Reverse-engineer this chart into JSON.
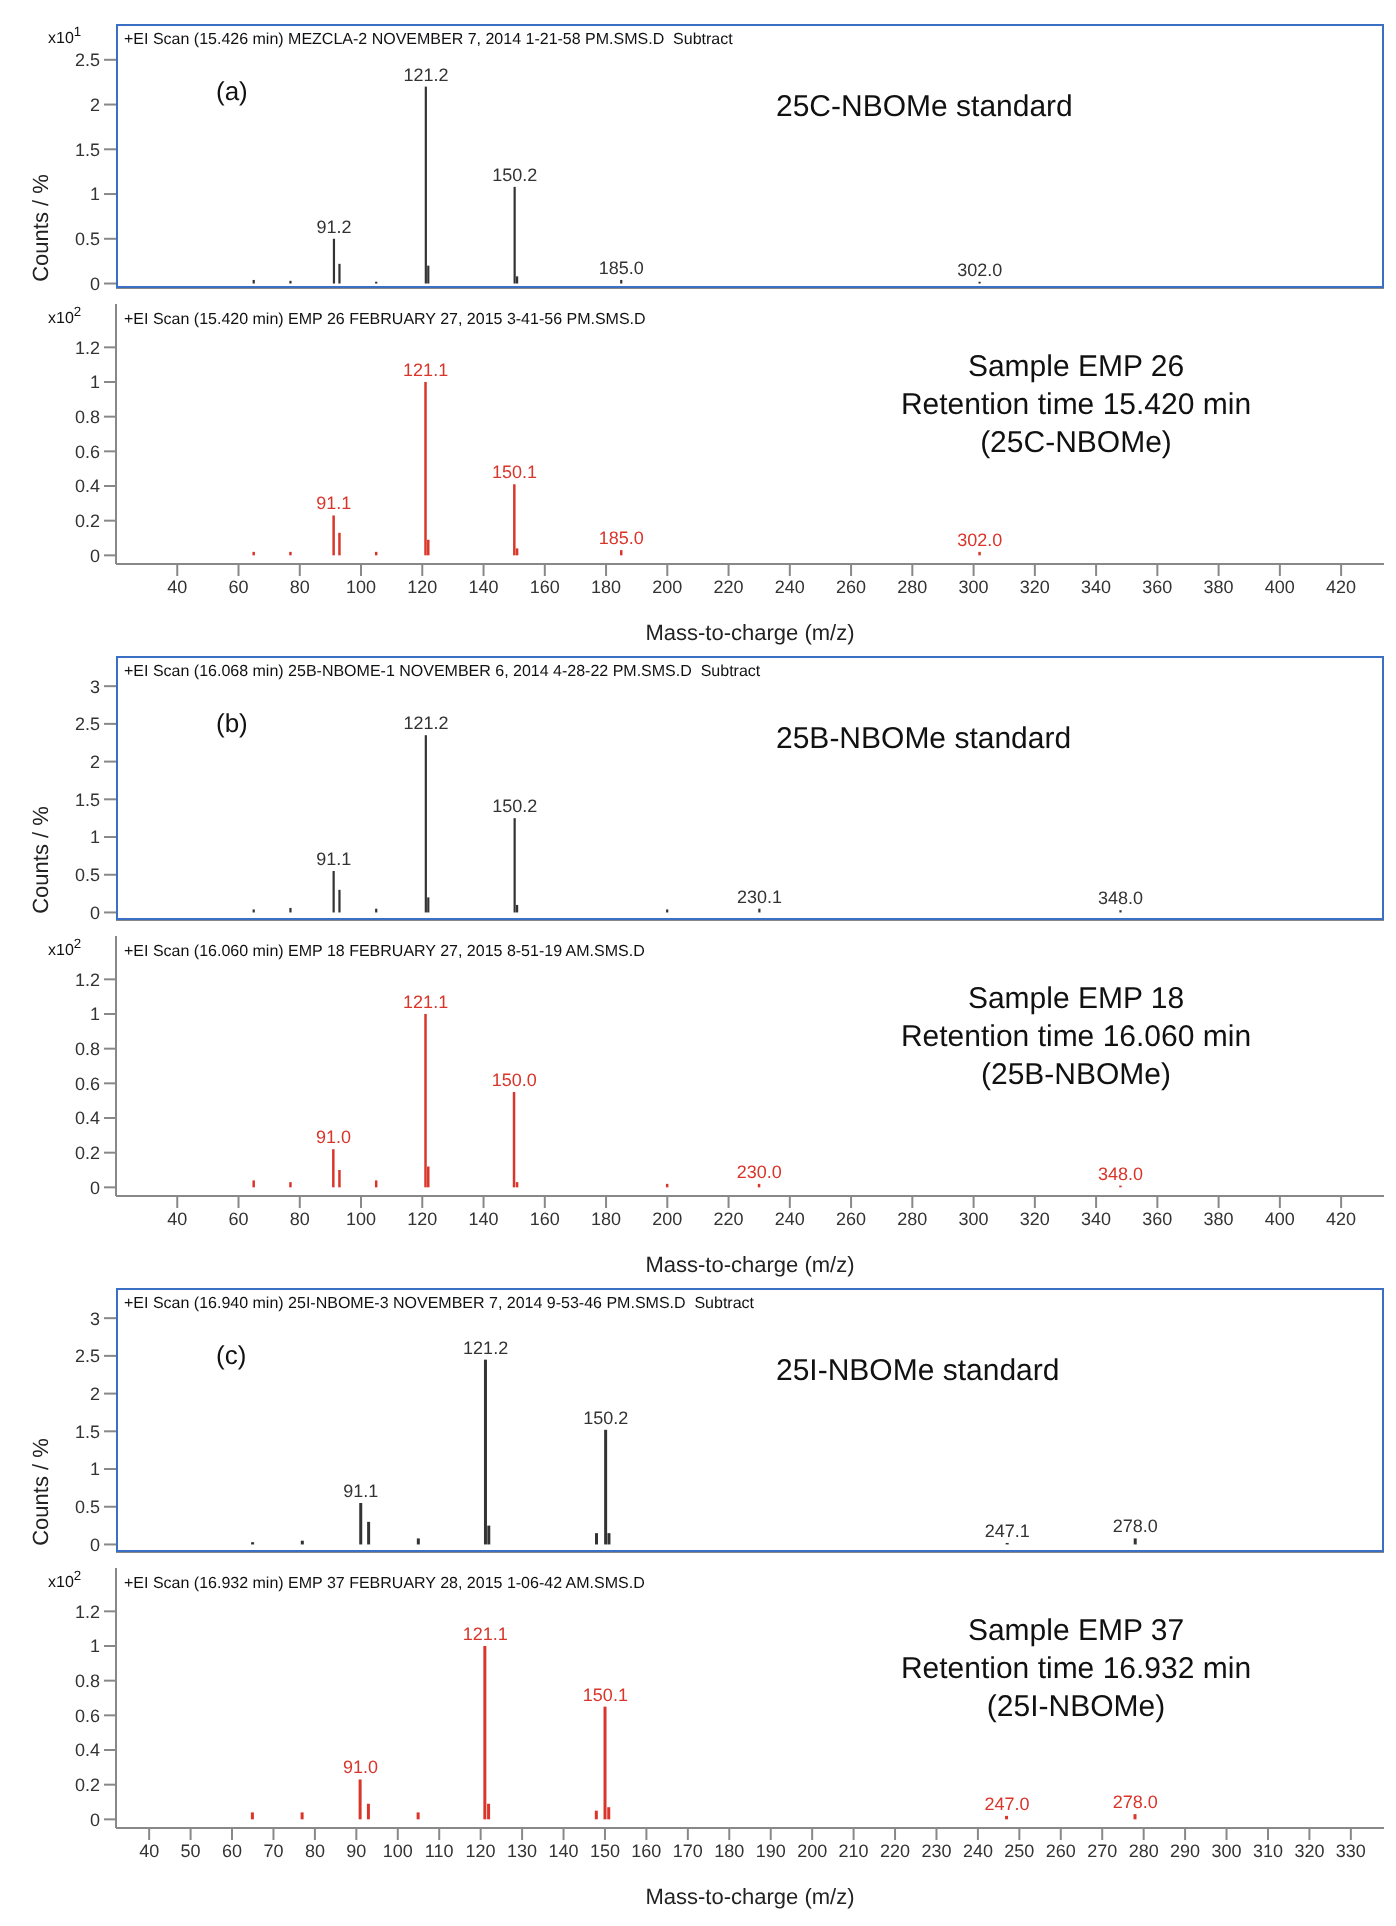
{
  "chart_data": [
    {
      "type": "bar",
      "title": "25C-NBOMe standard",
      "subtitle": "+EI Scan (15.426 min) MEZCLA-2 NOVEMBER 7, 2014 1-21-58 PM.SMS.D  Subtract",
      "ylabel": "Counts / %",
      "tick_labels": "y",
      "xlim": [
        20,
        434
      ],
      "ylim": [
        -0.05,
        2.9
      ],
      "yticks": [
        0,
        0.5,
        1,
        1.5,
        2,
        2.5
      ],
      "x": [
        65,
        77,
        91.2,
        93,
        105,
        121.2,
        122,
        150.2,
        151,
        185,
        302
      ],
      "series": [
        {
          "color": "#333333",
          "values": [
            0.04,
            0.03,
            0.5,
            0.22,
            0.02,
            2.2,
            0.2,
            1.08,
            0.08,
            0.04,
            0.02
          ]
        }
      ],
      "annotations": [
        "x10$^{1}$",
        "(a)",
        {
          "text": "91.2",
          "x": 91.2,
          "y": 0.5
        },
        {
          "text": "121.2",
          "x": 121.2,
          "y": 2.2
        },
        {
          "text": "150.2",
          "x": 150.2,
          "y": 1.08
        },
        {
          "text": "185.0",
          "x": 185,
          "y": 0.04
        },
        {
          "text": "302.0",
          "x": 302,
          "y": 0.02
        }
      ]
    },
    {
      "type": "bar",
      "title": "Sample EMP 26\nRetention time 15.420 min\n(25C-NBOMe)",
      "subtitle": "+EI Scan (15.420 min) EMP 26 FEBRUARY 27, 2015 3-41-56 PM.SMS.D",
      "xlabel": "Mass-to-charge (m/z)",
      "xlim": [
        20,
        434
      ],
      "xticks": [
        40,
        60,
        80,
        100,
        120,
        140,
        160,
        180,
        200,
        220,
        240,
        260,
        280,
        300,
        320,
        340,
        360,
        380,
        400,
        420
      ],
      "ylim": [
        -0.05,
        1.45
      ],
      "yticks": [
        0,
        0.2,
        0.4,
        0.6,
        0.8,
        1,
        1.2
      ],
      "x": [
        65,
        77,
        91.1,
        93,
        105,
        121.1,
        122,
        150.1,
        151,
        185,
        302
      ],
      "series": [
        {
          "color": "#d9352b",
          "values": [
            0.02,
            0.02,
            0.23,
            0.13,
            0.02,
            1,
            0.09,
            0.41,
            0.04,
            0.03,
            0.02
          ]
        }
      ],
      "annotations": [
        "x10$^{2}$",
        {
          "text": "91.1",
          "x": 91.1,
          "y": 0.23
        },
        {
          "text": "121.1",
          "x": 121.1,
          "y": 1
        },
        {
          "text": "150.1",
          "x": 150.1,
          "y": 0.41
        },
        {
          "text": "185.0",
          "x": 185,
          "y": 0.03
        },
        {
          "text": "302.0",
          "x": 302,
          "y": 0.02
        }
      ]
    },
    {
      "type": "bar",
      "title": "25B-NBOMe standard",
      "subtitle": "+EI Scan (16.068 min) 25B-NBOME-1 NOVEMBER 6, 2014 4-28-22 PM.SMS.D  Subtract",
      "ylabel": "Counts / %",
      "tick_labels": "y",
      "xlim": [
        20,
        434
      ],
      "ylim": [
        -0.1,
        3.4
      ],
      "yticks": [
        0,
        0.5,
        1,
        1.5,
        2,
        2.5,
        3
      ],
      "x": [
        65,
        77,
        91.1,
        93,
        105,
        121.2,
        122,
        150.2,
        151,
        200,
        230.1,
        348
      ],
      "series": [
        {
          "color": "#333333",
          "values": [
            0.04,
            0.06,
            0.55,
            0.3,
            0.05,
            2.35,
            0.2,
            1.25,
            0.1,
            0.04,
            0.05,
            0.03
          ]
        }
      ],
      "annotations": [
        "(b)",
        {
          "text": "91.1",
          "x": 91.1,
          "y": 0.55
        },
        {
          "text": "121.2",
          "x": 121.2,
          "y": 2.35
        },
        {
          "text": "150.2",
          "x": 150.2,
          "y": 1.25
        },
        {
          "text": "230.1",
          "x": 230.1,
          "y": 0.05
        },
        {
          "text": "348.0",
          "x": 348,
          "y": 0.03
        }
      ]
    },
    {
      "type": "bar",
      "title": "Sample EMP 18\nRetention time 16.060 min\n(25B-NBOMe)",
      "subtitle": "+EI Scan (16.060 min) EMP 18 FEBRUARY 27, 2015 8-51-19 AM.SMS.D",
      "xlabel": "Mass-to-charge (m/z)",
      "xlim": [
        20,
        434
      ],
      "xticks": [
        40,
        60,
        80,
        100,
        120,
        140,
        160,
        180,
        200,
        220,
        240,
        260,
        280,
        300,
        320,
        340,
        360,
        380,
        400,
        420
      ],
      "ylim": [
        -0.05,
        1.45
      ],
      "yticks": [
        0,
        0.2,
        0.4,
        0.6,
        0.8,
        1,
        1.2
      ],
      "x": [
        65,
        77,
        91,
        93,
        105,
        121.1,
        122,
        150,
        151,
        200,
        230,
        348
      ],
      "series": [
        {
          "color": "#d9352b",
          "values": [
            0.04,
            0.03,
            0.22,
            0.1,
            0.04,
            1,
            0.12,
            0.55,
            0.03,
            0.02,
            0.02,
            0.01
          ]
        }
      ],
      "annotations": [
        "x10$^{2}$",
        {
          "text": "91.0",
          "x": 91,
          "y": 0.22
        },
        {
          "text": "121.1",
          "x": 121.1,
          "y": 1
        },
        {
          "text": "150.0",
          "x": 150,
          "y": 0.55
        },
        {
          "text": "230.0",
          "x": 230,
          "y": 0.02
        },
        {
          "text": "348.0",
          "x": 348,
          "y": 0.01
        }
      ]
    },
    {
      "type": "bar",
      "title": "25I-NBOMe standard",
      "subtitle": "+EI Scan (16.940 min) 25I-NBOME-3 NOVEMBER 7, 2014 9-53-46 PM.SMS.D  Subtract",
      "ylabel": "Counts / %",
      "tick_labels": "y",
      "xlim": [
        32,
        338
      ],
      "ylim": [
        -0.1,
        3.4
      ],
      "yticks": [
        0,
        0.5,
        1,
        1.5,
        2,
        2.5,
        3
      ],
      "x": [
        65,
        77,
        91.1,
        93,
        105,
        121.2,
        122,
        148,
        150.2,
        151,
        247.1,
        278
      ],
      "series": [
        {
          "color": "#333333",
          "values": [
            0.03,
            0.05,
            0.55,
            0.3,
            0.08,
            2.45,
            0.25,
            0.15,
            1.52,
            0.15,
            0.02,
            0.08
          ]
        }
      ],
      "annotations": [
        "(c)",
        {
          "text": "91.1",
          "x": 91.1,
          "y": 0.55
        },
        {
          "text": "121.2",
          "x": 121.2,
          "y": 2.45
        },
        {
          "text": "150.2",
          "x": 150.2,
          "y": 1.52
        },
        {
          "text": "247.1",
          "x": 247.1,
          "y": 0.02
        },
        {
          "text": "278.0",
          "x": 278,
          "y": 0.08
        }
      ]
    },
    {
      "type": "bar",
      "title": "Sample EMP 37\nRetention time 16.932 min\n(25I-NBOMe)",
      "subtitle": "+EI Scan (16.932 min) EMP 37 FEBRUARY 28, 2015 1-06-42 AM.SMS.D",
      "xlabel": "Mass-to-charge (m/z)",
      "xlim": [
        32,
        338
      ],
      "xticks": [
        40,
        50,
        60,
        70,
        80,
        90,
        100,
        110,
        120,
        130,
        140,
        150,
        160,
        170,
        180,
        190,
        200,
        210,
        220,
        230,
        240,
        250,
        260,
        270,
        280,
        290,
        300,
        310,
        320,
        330
      ],
      "ylim": [
        -0.05,
        1.45
      ],
      "yticks": [
        0,
        0.2,
        0.4,
        0.6,
        0.8,
        1,
        1.2
      ],
      "x": [
        65,
        77,
        91,
        93,
        105,
        121.1,
        122,
        148,
        150.1,
        151,
        247,
        278
      ],
      "series": [
        {
          "color": "#d9352b",
          "values": [
            0.04,
            0.04,
            0.23,
            0.09,
            0.04,
            1,
            0.09,
            0.05,
            0.65,
            0.07,
            0.02,
            0.03
          ]
        }
      ],
      "annotations": [
        "x10$^{2}$",
        {
          "text": "91.0",
          "x": 91,
          "y": 0.23
        },
        {
          "text": "121.1",
          "x": 121.1,
          "y": 1
        },
        {
          "text": "150.1",
          "x": 150.1,
          "y": 0.65
        },
        {
          "text": "247.0",
          "x": 247,
          "y": 0.02
        },
        {
          "text": "278.0",
          "x": 278,
          "y": 0.03
        }
      ]
    }
  ]
}
